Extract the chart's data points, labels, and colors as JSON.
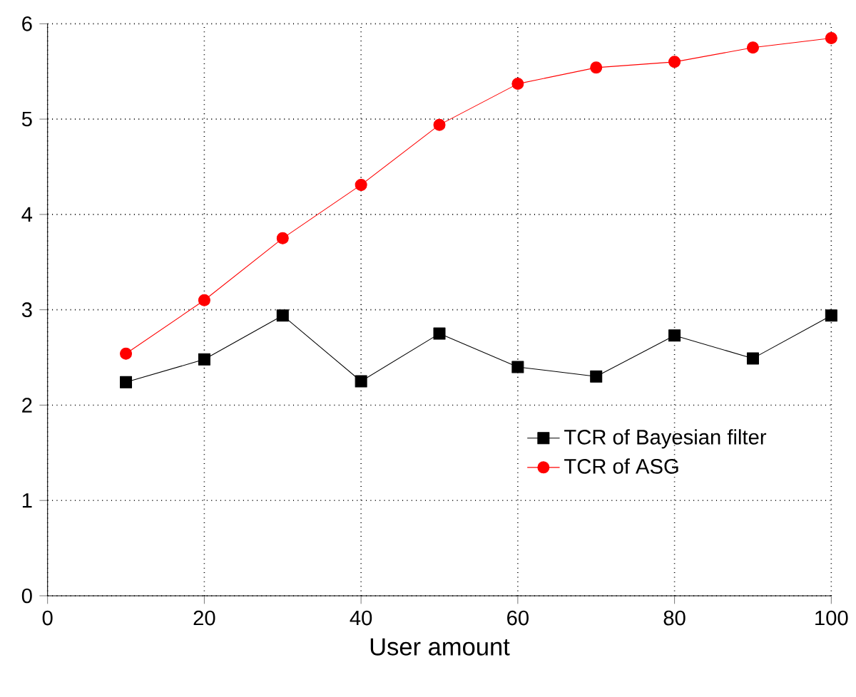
{
  "chart_data": {
    "type": "line",
    "xlabel": "User amount",
    "x": [
      10,
      20,
      30,
      40,
      50,
      60,
      70,
      80,
      90,
      100
    ],
    "series": [
      {
        "name": "TCR of Bayesian filter",
        "color": "#000000",
        "marker": "square",
        "values": [
          2.24,
          2.48,
          2.94,
          2.25,
          2.75,
          2.4,
          2.3,
          2.73,
          2.49,
          2.94
        ]
      },
      {
        "name": "TCR of ASG",
        "color": "#ff0000",
        "marker": "circle",
        "values": [
          2.54,
          3.1,
          3.75,
          4.31,
          4.94,
          5.37,
          5.54,
          5.6,
          5.75,
          5.85
        ]
      }
    ],
    "xlim": [
      0,
      100
    ],
    "ylim": [
      0,
      6
    ],
    "xticks": [
      0,
      20,
      40,
      60,
      80,
      100
    ],
    "yticks": [
      0,
      1,
      2,
      3,
      4,
      5,
      6
    ],
    "grid": true,
    "legend": "right",
    "line_style": "solid"
  }
}
